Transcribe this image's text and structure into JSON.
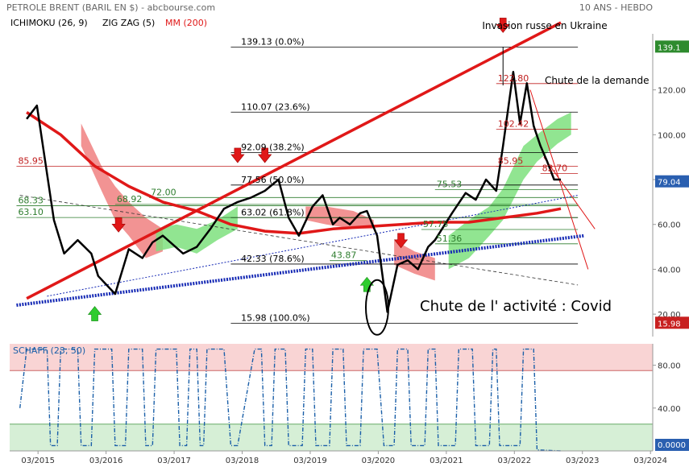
{
  "header": {
    "title": "PETROLE BRENT (BARIL EN $) - abcbourse.com",
    "timeframe": "10 ANS - HEBDO",
    "ind_ichimoku": "ICHIMOKU (26, 9)",
    "ind_zigzag": "ZIG ZAG (5)",
    "ind_mm": "MM (200)"
  },
  "colors": {
    "price": "#000000",
    "ma": "#e01818",
    "cloud_bull": "#7ee07e",
    "cloud_bear": "#f08080",
    "trend_red": "#e01818",
    "trend_blue": "#1428b4",
    "schaff": "#1a5fa8",
    "badge_last": "#2a5fb0",
    "badge_high": "#2e8b2e",
    "badge_low": "#c82020"
  },
  "chart_data": [
    {
      "type": "line",
      "title": "",
      "xlabel": "",
      "ylabel": "",
      "x_ticks": [
        "03/2015",
        "03/2016",
        "03/2017",
        "03/2018",
        "03/2019",
        "03/2020",
        "03/2021",
        "03/2022",
        "03/2023",
        "03/2024"
      ],
      "y_ticks": [
        20,
        40,
        60,
        80,
        100,
        120
      ],
      "ylim": [
        10,
        145
      ],
      "series": [
        {
          "role": "price",
          "x": [
            2015.0,
            2015.15,
            2015.4,
            2015.55,
            2015.75,
            2015.95,
            2016.05,
            2016.3,
            2016.5,
            2016.7,
            2016.85,
            2017.0,
            2017.3,
            2017.5,
            2017.7,
            2017.9,
            2018.1,
            2018.3,
            2018.5,
            2018.7,
            2018.85,
            2019.0,
            2019.2,
            2019.35,
            2019.5,
            2019.6,
            2019.75,
            2019.9,
            2020.0,
            2020.15,
            2020.3,
            2020.45,
            2020.6,
            2020.75,
            2020.9,
            2021.0,
            2021.25,
            2021.45,
            2021.6,
            2021.75,
            2021.9,
            2022.0,
            2022.15,
            2022.25,
            2022.35,
            2022.45,
            2022.55,
            2022.65,
            2022.75,
            2022.85
          ],
          "y": [
            107,
            113,
            62,
            47,
            53,
            47,
            37,
            29,
            49,
            45,
            52,
            55,
            47,
            50,
            58,
            67,
            70,
            72,
            75,
            80,
            63,
            55,
            68,
            73,
            60,
            63,
            60,
            65,
            66,
            55,
            21,
            42,
            44,
            40,
            50,
            53,
            65,
            74,
            71,
            80,
            75,
            95,
            128,
            105,
            123,
            104,
            95,
            88,
            80,
            80
          ]
        },
        {
          "name": "MM (200)",
          "role": "ma",
          "x": [
            2015.0,
            2015.5,
            2016.0,
            2016.5,
            2017.0,
            2017.5,
            2018.0,
            2018.5,
            2019.0,
            2019.5,
            2020.0,
            2020.5,
            2021.0,
            2021.5,
            2022.0,
            2022.5,
            2022.85
          ],
          "y": [
            110,
            100,
            86,
            77,
            70,
            66,
            60,
            57,
            56,
            58,
            59,
            60,
            61,
            61,
            63,
            65,
            67
          ]
        }
      ],
      "cloud_bands": [
        {
          "sign": "bear",
          "x": [
            2015.8,
            2016.1,
            2016.3,
            2016.5,
            2016.75,
            2017.0
          ],
          "top": [
            105,
            86,
            77,
            70,
            63,
            58
          ],
          "bottom": [
            95,
            75,
            62,
            55,
            45,
            48
          ]
        },
        {
          "sign": "bull",
          "x": [
            2016.9,
            2017.2,
            2017.5,
            2017.8,
            2018.1
          ],
          "top": [
            58,
            60,
            58,
            62,
            68
          ],
          "bottom": [
            48,
            50,
            47,
            53,
            58
          ]
        },
        {
          "sign": "bear",
          "x": [
            2019.1,
            2019.4,
            2019.8,
            2020.1
          ],
          "top": [
            68,
            68,
            66,
            62
          ],
          "bottom": [
            62,
            60,
            58,
            58
          ]
        },
        {
          "sign": "bear",
          "x": [
            2020.4,
            2020.7,
            2021.0
          ],
          "top": [
            53,
            48,
            45
          ],
          "bottom": [
            42,
            38,
            35
          ]
        },
        {
          "sign": "bull",
          "x": [
            2021.2,
            2021.5,
            2021.8,
            2022.0,
            2022.3,
            2022.5,
            2022.8,
            2023.0
          ],
          "top": [
            55,
            62,
            68,
            76,
            95,
            100,
            107,
            110
          ],
          "bottom": [
            40,
            45,
            55,
            62,
            80,
            88,
            96,
            100
          ]
        }
      ],
      "fibonacci": [
        {
          "value": 139.13,
          "label": "139.13",
          "pct": "(0.0%)"
        },
        {
          "value": 110.07,
          "label": "110.07",
          "pct": "(23.6%)"
        },
        {
          "value": 92.09,
          "label": "92.09",
          "pct": "(38.2%)"
        },
        {
          "value": 77.56,
          "label": "77.56",
          "pct": "(50.0%)"
        },
        {
          "value": 63.02,
          "label": "63.02",
          "pct": "(61.8%)"
        },
        {
          "value": 42.33,
          "label": "42.33",
          "pct": "(78.6%)"
        },
        {
          "value": 15.98,
          "label": "15.98",
          "pct": "(100.0%)"
        }
      ],
      "levels_red": [
        {
          "value": 85.95,
          "label": "85.95",
          "x0": 2014.85,
          "x1": 2023.1,
          "label_x": 2014.85
        },
        {
          "value": 122.8,
          "label": "122.80",
          "x0": 2021.9,
          "x1": 2023.1,
          "label_x": 2021.9
        },
        {
          "value": 102.42,
          "label": "102.42",
          "x0": 2021.9,
          "x1": 2023.1,
          "label_x": 2021.9
        },
        {
          "value": 85.95,
          "label": "85.95",
          "x0": 2021.9,
          "x1": 2022.3,
          "label_x": 2021.9
        },
        {
          "value": 82.7,
          "label": "82.70",
          "x0": 2022.55,
          "x1": 2023.1,
          "label_x": 2022.55
        }
      ],
      "levels_green": [
        {
          "value": 68.33,
          "label": "68.33",
          "x0": 2014.85,
          "x1": 2023.1,
          "label_x": 2014.85
        },
        {
          "value": 63.1,
          "label": "63.10",
          "x0": 2014.85,
          "x1": 2023.1,
          "label_x": 2014.85
        },
        {
          "value": 68.92,
          "label": "68.92",
          "x0": 2016.3,
          "x1": 2023.1,
          "label_x": 2016.3
        },
        {
          "value": 72.0,
          "label": "72.00",
          "x0": 2016.8,
          "x1": 2023.1,
          "label_x": 2016.8
        },
        {
          "value": 75.53,
          "label": "75.53",
          "x0": 2021.0,
          "x1": 2023.1,
          "label_x": 2021.0
        },
        {
          "value": 57.75,
          "label": "57.75",
          "x0": 2020.8,
          "x1": 2023.1,
          "label_x": 2020.8
        },
        {
          "value": 51.36,
          "label": "51.36",
          "x0": 2021.0,
          "x1": 2023.1,
          "label_x": 2021.0
        },
        {
          "value": 43.87,
          "label": "43.87",
          "x0": 2019.45,
          "x1": 2020.0,
          "label_x": 2019.45
        }
      ],
      "trendlines": [
        {
          "kind": "red",
          "x": [
            2015.0,
            2022.85
          ],
          "y": [
            27,
            150
          ]
        },
        {
          "kind": "red-thin",
          "x": [
            2022.4,
            2023.25
          ],
          "y": [
            120,
            40
          ]
        },
        {
          "kind": "red-thin",
          "x": [
            2022.6,
            2023.35
          ],
          "y": [
            90,
            58
          ]
        },
        {
          "kind": "blue-dotted-thick",
          "x": [
            2014.85,
            2023.2
          ],
          "y": [
            24,
            55
          ]
        },
        {
          "kind": "blue-dotted-thin",
          "x": [
            2015.3,
            2023.1
          ],
          "y": [
            28,
            73
          ]
        },
        {
          "kind": "black-dashed",
          "x": [
            2014.9,
            2023.1
          ],
          "y": [
            73,
            33
          ]
        }
      ],
      "down_arrows": [
        {
          "x": 2016.35,
          "y": 58
        },
        {
          "x": 2018.1,
          "y": 89
        },
        {
          "x": 2018.5,
          "y": 89
        },
        {
          "x": 2020.5,
          "y": 51
        },
        {
          "x": 2022.0,
          "y": 147
        }
      ],
      "up_arrows": [
        {
          "x": 2016.0,
          "y": 22
        },
        {
          "x": 2020.0,
          "y": 35
        }
      ],
      "covid_ellipse": {
        "x": 2020.15,
        "y": 23
      },
      "annotations": {
        "invasion": "Invasion russe en Ukraine",
        "chute_demande": "Chute de la demande",
        "covid": "Chute de l' activité : Covid"
      },
      "right_badges": {
        "high": "139.1",
        "last": "79.04",
        "low": "15.98"
      }
    },
    {
      "type": "line",
      "title": "SCHAFF (23, 50)",
      "y_ticks": [
        40,
        80
      ],
      "ylim": [
        0,
        100
      ],
      "bands": {
        "upper": 75,
        "lower": 25
      },
      "last_value": "0.0000",
      "series": [
        {
          "name": "SCHAFF (23, 50)",
          "x": [
            2014.9,
            2015.0,
            2015.1,
            2015.3,
            2015.35,
            2015.45,
            2015.5,
            2015.75,
            2015.8,
            2015.95,
            2016.0,
            2016.25,
            2016.3,
            2016.45,
            2016.5,
            2016.7,
            2016.75,
            2016.85,
            2016.9,
            2017.2,
            2017.25,
            2017.35,
            2017.4,
            2017.5,
            2017.55,
            2017.6,
            2017.65,
            2017.9,
            2018.0,
            2018.1,
            2018.35,
            2018.45,
            2018.5,
            2018.6,
            2018.65,
            2018.8,
            2018.85,
            2019.05,
            2019.1,
            2019.2,
            2019.25,
            2019.45,
            2019.5,
            2019.65,
            2019.7,
            2019.9,
            2019.95,
            2020.15,
            2020.25,
            2020.4,
            2020.45,
            2020.6,
            2020.65,
            2020.85,
            2020.9,
            2021.0,
            2021.05,
            2021.3,
            2021.35,
            2021.55,
            2021.6,
            2021.8,
            2021.85,
            2021.9,
            2021.95,
            2022.25,
            2022.3,
            2022.45,
            2022.5,
            2022.85
          ],
          "y": [
            40,
            95,
            95,
            95,
            5,
            5,
            95,
            95,
            5,
            5,
            95,
            95,
            5,
            5,
            95,
            95,
            5,
            5,
            95,
            95,
            5,
            5,
            95,
            95,
            5,
            5,
            95,
            95,
            5,
            5,
            95,
            95,
            5,
            5,
            95,
            95,
            5,
            5,
            95,
            95,
            5,
            5,
            95,
            95,
            5,
            5,
            95,
            95,
            5,
            5,
            95,
            95,
            5,
            5,
            95,
            95,
            5,
            5,
            95,
            95,
            5,
            5,
            95,
            95,
            5,
            5,
            95,
            95,
            1,
            0
          ]
        }
      ]
    }
  ]
}
